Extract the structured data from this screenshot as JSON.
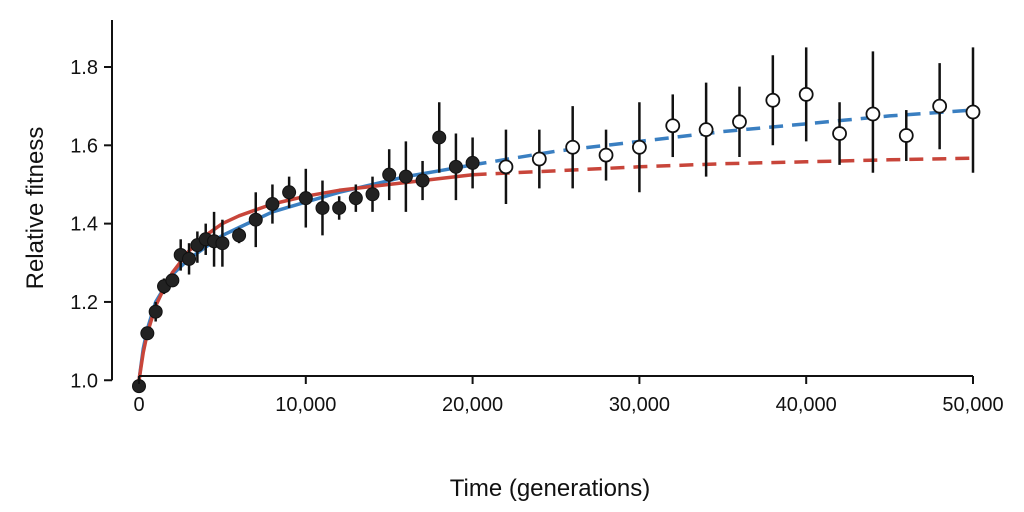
{
  "chart_data": {
    "type": "scatter",
    "title": "",
    "xlabel": "Time (generations)",
    "ylabel": "Relative fitness",
    "xlim": [
      0,
      50000
    ],
    "ylim": [
      0.97,
      1.92
    ],
    "x_ticks": [
      0,
      10000,
      20000,
      30000,
      40000,
      50000
    ],
    "x_tick_labels": [
      "0",
      "10,000",
      "20,000",
      "30,000",
      "40,000",
      "50,000"
    ],
    "y_ticks": [
      1.0,
      1.2,
      1.4,
      1.6,
      1.8
    ],
    "y_tick_labels": [
      "1.0",
      "1.2",
      "1.4",
      "1.6",
      "1.8"
    ],
    "grid": false,
    "legend": "none",
    "series": [
      {
        "marker": "filled-circle",
        "color": "#222222",
        "points": [
          {
            "x": 0,
            "y": 0.985,
            "lo": 0.985,
            "hi": 0.985
          },
          {
            "x": 500,
            "y": 1.12,
            "lo": 1.11,
            "hi": 1.13
          },
          {
            "x": 1000,
            "y": 1.175,
            "lo": 1.15,
            "hi": 1.2
          },
          {
            "x": 1500,
            "y": 1.24,
            "lo": 1.22,
            "hi": 1.26
          },
          {
            "x": 2000,
            "y": 1.255,
            "lo": 1.24,
            "hi": 1.27
          },
          {
            "x": 2500,
            "y": 1.32,
            "lo": 1.28,
            "hi": 1.36
          },
          {
            "x": 3000,
            "y": 1.31,
            "lo": 1.27,
            "hi": 1.35
          },
          {
            "x": 3500,
            "y": 1.345,
            "lo": 1.3,
            "hi": 1.38
          },
          {
            "x": 4000,
            "y": 1.36,
            "lo": 1.32,
            "hi": 1.4
          },
          {
            "x": 4500,
            "y": 1.355,
            "lo": 1.29,
            "hi": 1.43
          },
          {
            "x": 5000,
            "y": 1.35,
            "lo": 1.29,
            "hi": 1.41
          },
          {
            "x": 6000,
            "y": 1.37,
            "lo": 1.35,
            "hi": 1.39
          },
          {
            "x": 7000,
            "y": 1.41,
            "lo": 1.34,
            "hi": 1.48
          },
          {
            "x": 8000,
            "y": 1.45,
            "lo": 1.4,
            "hi": 1.5
          },
          {
            "x": 9000,
            "y": 1.48,
            "lo": 1.44,
            "hi": 1.52
          },
          {
            "x": 10000,
            "y": 1.465,
            "lo": 1.39,
            "hi": 1.54
          },
          {
            "x": 11000,
            "y": 1.44,
            "lo": 1.37,
            "hi": 1.51
          },
          {
            "x": 12000,
            "y": 1.44,
            "lo": 1.41,
            "hi": 1.47
          },
          {
            "x": 13000,
            "y": 1.465,
            "lo": 1.43,
            "hi": 1.5
          },
          {
            "x": 14000,
            "y": 1.475,
            "lo": 1.43,
            "hi": 1.52
          },
          {
            "x": 15000,
            "y": 1.525,
            "lo": 1.46,
            "hi": 1.59
          },
          {
            "x": 16000,
            "y": 1.52,
            "lo": 1.43,
            "hi": 1.61
          },
          {
            "x": 17000,
            "y": 1.51,
            "lo": 1.46,
            "hi": 1.56
          },
          {
            "x": 18000,
            "y": 1.62,
            "lo": 1.53,
            "hi": 1.71
          },
          {
            "x": 19000,
            "y": 1.545,
            "lo": 1.46,
            "hi": 1.63
          },
          {
            "x": 20000,
            "y": 1.555,
            "lo": 1.49,
            "hi": 1.62
          }
        ]
      },
      {
        "marker": "open-circle",
        "color": "#222222",
        "points": [
          {
            "x": 22000,
            "y": 1.545,
            "lo": 1.45,
            "hi": 1.64
          },
          {
            "x": 24000,
            "y": 1.565,
            "lo": 1.49,
            "hi": 1.64
          },
          {
            "x": 26000,
            "y": 1.595,
            "lo": 1.49,
            "hi": 1.7
          },
          {
            "x": 28000,
            "y": 1.575,
            "lo": 1.51,
            "hi": 1.64
          },
          {
            "x": 30000,
            "y": 1.595,
            "lo": 1.48,
            "hi": 1.71
          },
          {
            "x": 32000,
            "y": 1.65,
            "lo": 1.57,
            "hi": 1.73
          },
          {
            "x": 34000,
            "y": 1.64,
            "lo": 1.52,
            "hi": 1.76
          },
          {
            "x": 36000,
            "y": 1.66,
            "lo": 1.57,
            "hi": 1.75
          },
          {
            "x": 38000,
            "y": 1.715,
            "lo": 1.6,
            "hi": 1.83
          },
          {
            "x": 40000,
            "y": 1.73,
            "lo": 1.61,
            "hi": 1.85
          },
          {
            "x": 42000,
            "y": 1.63,
            "lo": 1.55,
            "hi": 1.71
          },
          {
            "x": 44000,
            "y": 1.68,
            "lo": 1.53,
            "hi": 1.84
          },
          {
            "x": 46000,
            "y": 1.625,
            "lo": 1.56,
            "hi": 1.69
          },
          {
            "x": 48000,
            "y": 1.7,
            "lo": 1.59,
            "hi": 1.81
          },
          {
            "x": 50000,
            "y": 1.685,
            "lo": 1.53,
            "hi": 1.85
          }
        ]
      }
    ],
    "curves": [
      {
        "model": "power-law",
        "color": "#3a7fc1",
        "style": "solid-then-dashed",
        "x": [
          0,
          250,
          500,
          1000,
          1500,
          2000,
          3000,
          4000,
          5000,
          6000,
          8000,
          10000,
          12000,
          14000,
          16000,
          18000,
          20000,
          25000,
          30000,
          35000,
          40000,
          45000,
          50000
        ],
        "y": [
          1.0,
          1.08,
          1.13,
          1.2,
          1.235,
          1.27,
          1.31,
          1.34,
          1.37,
          1.39,
          1.43,
          1.455,
          1.48,
          1.5,
          1.52,
          1.535,
          1.55,
          1.585,
          1.61,
          1.635,
          1.655,
          1.675,
          1.69
        ]
      },
      {
        "model": "hyperbolic",
        "color": "#c8453a",
        "style": "solid-then-dashed",
        "x": [
          0,
          250,
          500,
          1000,
          1500,
          2000,
          3000,
          4000,
          5000,
          6000,
          8000,
          10000,
          12000,
          14000,
          16000,
          18000,
          20000,
          25000,
          30000,
          35000,
          40000,
          45000,
          50000
        ],
        "y": [
          1.0,
          1.07,
          1.12,
          1.19,
          1.235,
          1.275,
          1.33,
          1.37,
          1.4,
          1.42,
          1.45,
          1.47,
          1.485,
          1.495,
          1.505,
          1.515,
          1.525,
          1.535,
          1.545,
          1.553,
          1.558,
          1.563,
          1.567
        ]
      }
    ],
    "curve_dash_from_x": 20000
  }
}
